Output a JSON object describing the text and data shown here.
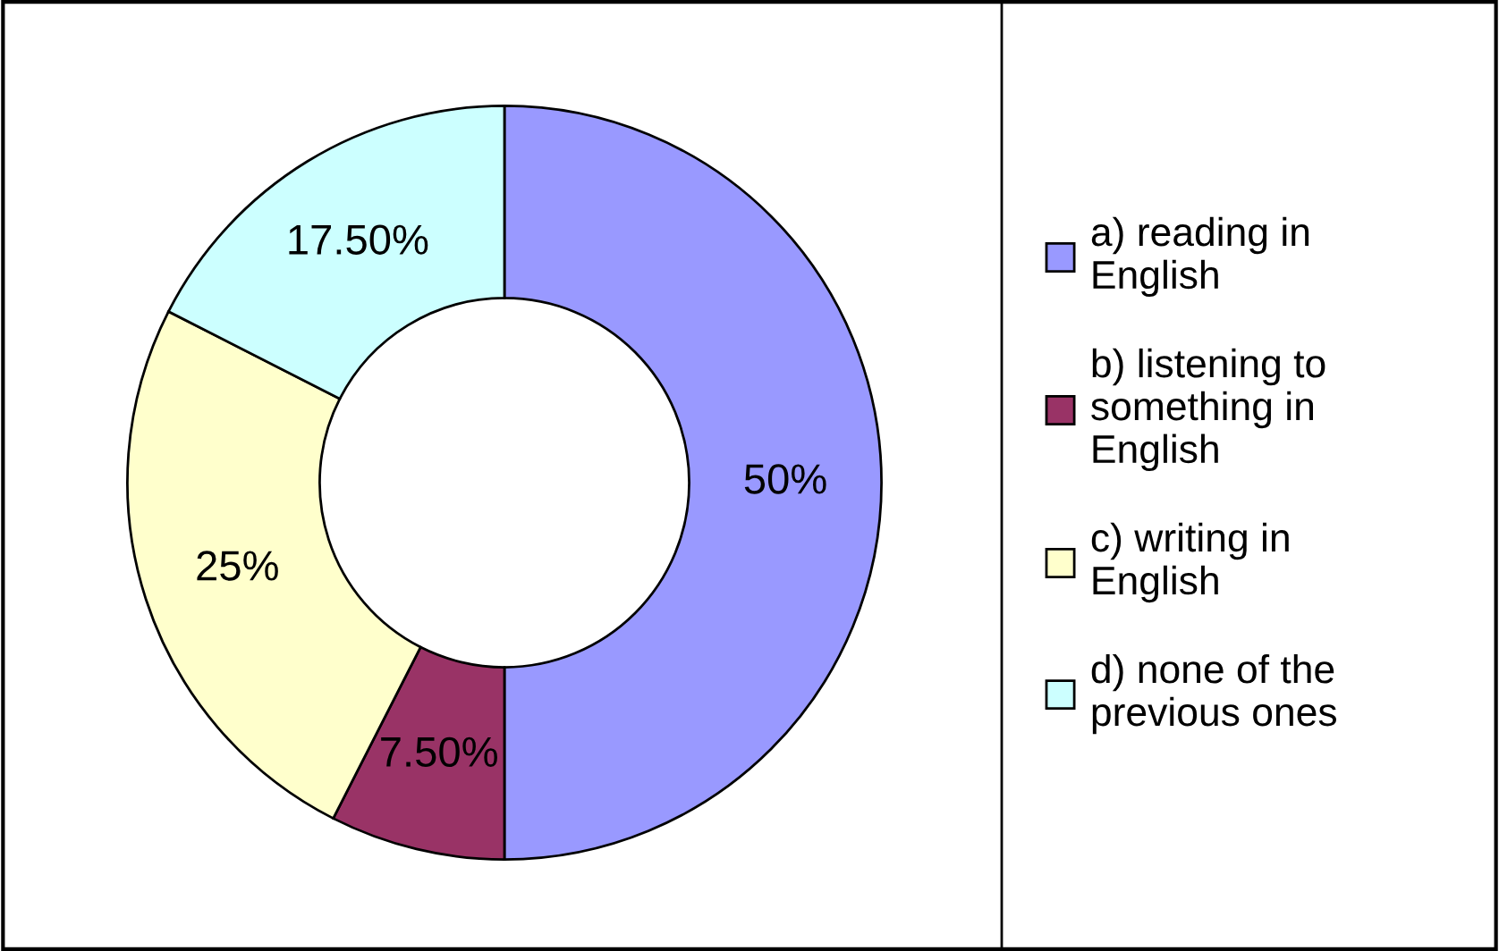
{
  "chart_data": {
    "type": "donut",
    "categories": [
      "a) reading in English",
      "b) listening to something in English",
      "c) writing in English",
      "d) none of the previous ones"
    ],
    "values": [
      50,
      7.5,
      25,
      17.5
    ],
    "colors": [
      "#9999ff",
      "#993366",
      "#ffffcc",
      "#ccffff"
    ],
    "value_labels": [
      "50%",
      "7.50%",
      "25%",
      "17.50%"
    ],
    "legend": "right"
  }
}
